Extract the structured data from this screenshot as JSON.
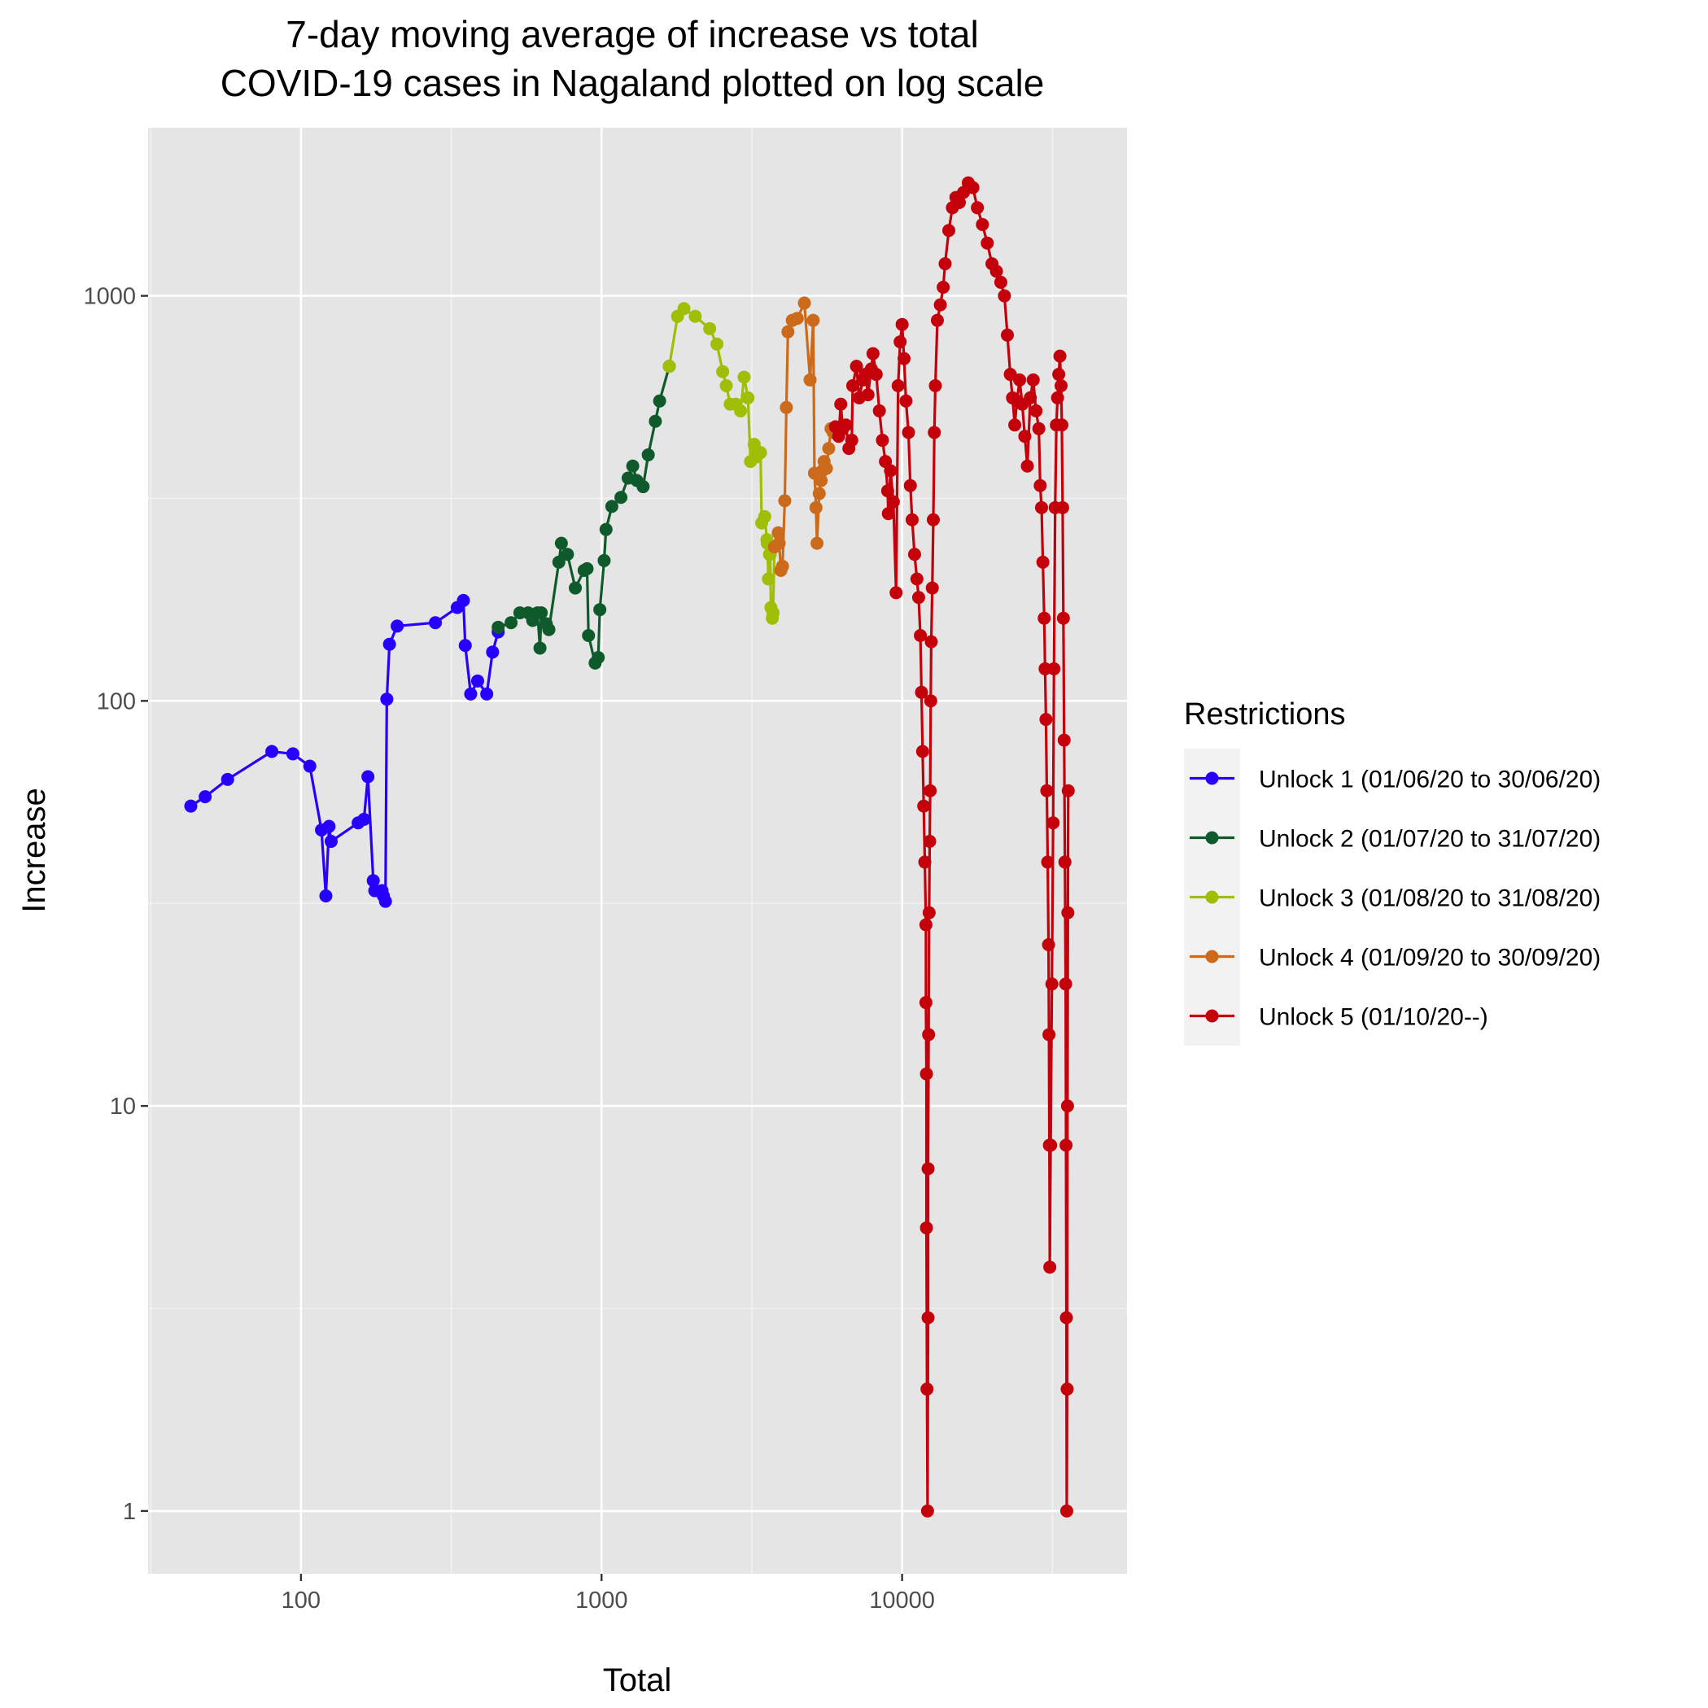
{
  "chart_data": {
    "type": "line",
    "title_lines": [
      "7-day moving average of increase vs total",
      "COVID-19 cases in Nagaland plotted on log scale"
    ],
    "xlabel": "Total",
    "ylabel": "Increase",
    "x_scale": "log10",
    "y_scale": "log10",
    "xlim": [
      31,
      56000
    ],
    "ylim": [
      0.7,
      2600
    ],
    "x_ticks": [
      {
        "value": 100,
        "label": "100"
      },
      {
        "value": 1000,
        "label": "1000"
      },
      {
        "value": 10000,
        "label": "10000"
      }
    ],
    "y_ticks": [
      {
        "value": 1,
        "label": "1"
      },
      {
        "value": 10,
        "label": "10"
      },
      {
        "value": 100,
        "label": "100"
      },
      {
        "value": 1000,
        "label": "1000"
      }
    ],
    "grid": true,
    "legend": {
      "title": "Restrictions",
      "position": "right"
    },
    "series": [
      {
        "name": "Unlock 1 (01/06/20 to 30/06/20)",
        "color": "#2600ff",
        "points": [
          [
            43,
            55
          ],
          [
            48,
            58
          ],
          [
            57,
            64
          ],
          [
            80,
            75
          ],
          [
            94,
            74
          ],
          [
            107,
            69
          ],
          [
            117,
            48
          ],
          [
            121,
            33
          ],
          [
            124,
            49
          ],
          [
            126,
            45
          ],
          [
            155,
            50
          ],
          [
            162,
            51
          ],
          [
            167,
            65
          ],
          [
            174,
            36
          ],
          [
            176,
            34
          ],
          [
            186,
            34
          ],
          [
            188,
            33
          ],
          [
            191,
            32
          ],
          [
            193,
            101
          ],
          [
            197,
            138
          ],
          [
            209,
            153
          ],
          [
            280,
            156
          ],
          [
            331,
            170
          ],
          [
            347,
            177
          ],
          [
            352,
            137
          ],
          [
            367,
            104
          ],
          [
            387,
            112
          ],
          [
            415,
            104
          ],
          [
            434,
            132
          ],
          [
            453,
            148
          ]
        ]
      },
      {
        "name": "Unlock 2 (01/07/20 to 31/07/20)",
        "color": "#0f5a2b",
        "points": [
          [
            453,
            152
          ],
          [
            500,
            156
          ],
          [
            535,
            165
          ],
          [
            570,
            165
          ],
          [
            590,
            158
          ],
          [
            612,
            165
          ],
          [
            624,
            135
          ],
          [
            630,
            165
          ],
          [
            655,
            155
          ],
          [
            668,
            150
          ],
          [
            721,
            220
          ],
          [
            735,
            245
          ],
          [
            770,
            230
          ],
          [
            818,
            190
          ],
          [
            875,
            210
          ],
          [
            895,
            212
          ],
          [
            905,
            145
          ],
          [
            952,
            124
          ],
          [
            975,
            128
          ],
          [
            987,
            168
          ],
          [
            1020,
            222
          ],
          [
            1035,
            265
          ],
          [
            1082,
            302
          ],
          [
            1160,
            318
          ],
          [
            1226,
            355
          ],
          [
            1270,
            380
          ],
          [
            1310,
            350
          ],
          [
            1375,
            338
          ],
          [
            1430,
            405
          ],
          [
            1510,
            490
          ],
          [
            1560,
            550
          ],
          [
            1680,
            670
          ]
        ]
      },
      {
        "name": "Unlock 3 (01/08/20 to 31/08/20)",
        "color": "#9fbf06",
        "points": [
          [
            1680,
            670
          ],
          [
            1790,
            890
          ],
          [
            1880,
            930
          ],
          [
            2050,
            890
          ],
          [
            2290,
            830
          ],
          [
            2420,
            760
          ],
          [
            2530,
            650
          ],
          [
            2600,
            600
          ],
          [
            2680,
            540
          ],
          [
            2800,
            540
          ],
          [
            2900,
            520
          ],
          [
            2980,
            630
          ],
          [
            3070,
            560
          ],
          [
            3130,
            390
          ],
          [
            3220,
            430
          ],
          [
            3270,
            400
          ],
          [
            3380,
            410
          ],
          [
            3410,
            275
          ],
          [
            3490,
            285
          ],
          [
            3550,
            250
          ],
          [
            3560,
            245
          ],
          [
            3590,
            200
          ],
          [
            3620,
            230
          ],
          [
            3640,
            230
          ],
          [
            3660,
            170
          ],
          [
            3700,
            160
          ],
          [
            3720,
            165
          ],
          [
            3760,
            240
          ]
        ]
      },
      {
        "name": "Unlock 4 (01/09/20 to 30/09/20)",
        "color": "#cc6a1c",
        "points": [
          [
            3760,
            240
          ],
          [
            3870,
            260
          ],
          [
            3900,
            245
          ],
          [
            3950,
            210
          ],
          [
            4000,
            215
          ],
          [
            4070,
            312
          ],
          [
            4120,
            530
          ],
          [
            4170,
            815
          ],
          [
            4310,
            870
          ],
          [
            4480,
            880
          ],
          [
            4730,
            960
          ],
          [
            4940,
            620
          ],
          [
            5060,
            870
          ],
          [
            5110,
            365
          ],
          [
            5170,
            300
          ],
          [
            5210,
            245
          ],
          [
            5300,
            325
          ],
          [
            5380,
            350
          ],
          [
            5430,
            370
          ],
          [
            5500,
            390
          ],
          [
            5600,
            375
          ],
          [
            5700,
            420
          ],
          [
            5800,
            470
          ],
          [
            5900,
            460
          ],
          [
            6000,
            475
          ]
        ]
      },
      {
        "name": "Unlock 5 (01/10/20--)",
        "color": "#c4000b",
        "points": [
          [
            6000,
            475
          ],
          [
            6150,
            450
          ],
          [
            6250,
            540
          ],
          [
            6350,
            470
          ],
          [
            6500,
            480
          ],
          [
            6650,
            420
          ],
          [
            6800,
            440
          ],
          [
            6850,
            600
          ],
          [
            7050,
            670
          ],
          [
            7200,
            560
          ],
          [
            7400,
            620
          ],
          [
            7550,
            640
          ],
          [
            7700,
            570
          ],
          [
            7900,
            660
          ],
          [
            8000,
            720
          ],
          [
            8200,
            640
          ],
          [
            8400,
            520
          ],
          [
            8600,
            440
          ],
          [
            8800,
            390
          ],
          [
            8950,
            330
          ],
          [
            9000,
            290
          ],
          [
            9150,
            370
          ],
          [
            9350,
            310
          ],
          [
            9550,
            185
          ],
          [
            9700,
            600
          ],
          [
            9850,
            770
          ],
          [
            10000,
            850
          ],
          [
            10150,
            700
          ],
          [
            10300,
            550
          ],
          [
            10500,
            460
          ],
          [
            10650,
            340
          ],
          [
            10800,
            280
          ],
          [
            11000,
            230
          ],
          [
            11200,
            200
          ],
          [
            11350,
            180
          ],
          [
            11500,
            145
          ],
          [
            11600,
            105
          ],
          [
            11700,
            75
          ],
          [
            11800,
            55
          ],
          [
            11900,
            40
          ],
          [
            12000,
            28
          ],
          [
            12000,
            18
          ],
          [
            12050,
            12
          ],
          [
            12050,
            5
          ],
          [
            12100,
            2
          ],
          [
            12150,
            1
          ],
          [
            12200,
            3
          ],
          [
            12200,
            7
          ],
          [
            12250,
            15
          ],
          [
            12300,
            30
          ],
          [
            12350,
            45
          ],
          [
            12400,
            60
          ],
          [
            12450,
            100
          ],
          [
            12500,
            140
          ],
          [
            12600,
            190
          ],
          [
            12700,
            280
          ],
          [
            12800,
            460
          ],
          [
            12900,
            600
          ],
          [
            13100,
            870
          ],
          [
            13400,
            950
          ],
          [
            13700,
            1050
          ],
          [
            13900,
            1200
          ],
          [
            14300,
            1450
          ],
          [
            14700,
            1650
          ],
          [
            15100,
            1750
          ],
          [
            15500,
            1700
          ],
          [
            16000,
            1800
          ],
          [
            16600,
            1900
          ],
          [
            17200,
            1850
          ],
          [
            17800,
            1650
          ],
          [
            18500,
            1500
          ],
          [
            19200,
            1350
          ],
          [
            19900,
            1200
          ],
          [
            20600,
            1150
          ],
          [
            21300,
            1080
          ],
          [
            21900,
            1000
          ],
          [
            22400,
            800
          ],
          [
            22900,
            640
          ],
          [
            23300,
            560
          ],
          [
            23700,
            480
          ],
          [
            24100,
            550
          ],
          [
            24600,
            620
          ],
          [
            25100,
            540
          ],
          [
            25600,
            450
          ],
          [
            26100,
            380
          ],
          [
            26700,
            560
          ],
          [
            27300,
            620
          ],
          [
            27900,
            520
          ],
          [
            28500,
            470
          ],
          [
            28800,
            340
          ],
          [
            29100,
            300
          ],
          [
            29400,
            220
          ],
          [
            29700,
            160
          ],
          [
            29900,
            120
          ],
          [
            30100,
            90
          ],
          [
            30300,
            60
          ],
          [
            30500,
            40
          ],
          [
            30700,
            25
          ],
          [
            30800,
            15
          ],
          [
            30900,
            8
          ],
          [
            31000,
            4
          ],
          [
            31200,
            8
          ],
          [
            31500,
            20
          ],
          [
            31800,
            50
          ],
          [
            32000,
            120
          ],
          [
            32300,
            300
          ],
          [
            32600,
            480
          ],
          [
            32900,
            560
          ],
          [
            33200,
            640
          ],
          [
            33500,
            710
          ],
          [
            33800,
            600
          ],
          [
            34000,
            480
          ],
          [
            34200,
            300
          ],
          [
            34400,
            160
          ],
          [
            34600,
            80
          ],
          [
            34800,
            40
          ],
          [
            35000,
            20
          ],
          [
            35100,
            8
          ],
          [
            35200,
            3
          ],
          [
            35300,
            1
          ],
          [
            35400,
            2
          ],
          [
            35500,
            10
          ],
          [
            35600,
            30
          ],
          [
            35700,
            60
          ]
        ]
      }
    ]
  }
}
